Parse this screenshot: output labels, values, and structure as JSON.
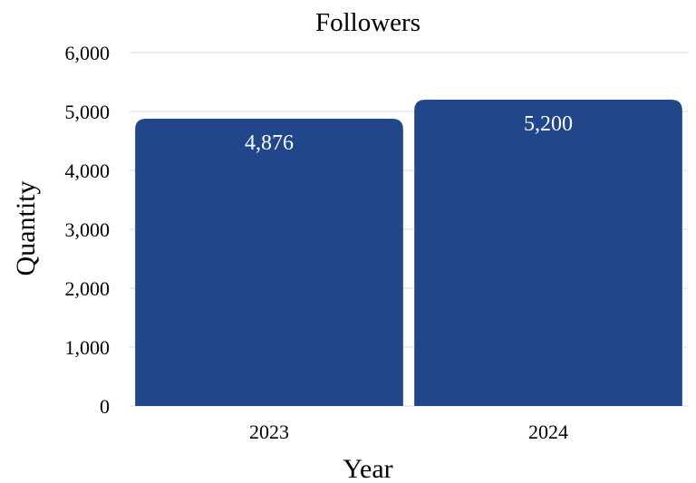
{
  "chart_data": {
    "type": "bar",
    "title": "Followers",
    "xlabel": "Year",
    "ylabel": "Quantity",
    "categories": [
      "2023",
      "2024"
    ],
    "values": [
      4876,
      5200
    ],
    "value_labels": [
      "4,876",
      "5,200"
    ],
    "ylim": [
      0,
      6000
    ],
    "yticks": [
      0,
      1000,
      2000,
      3000,
      4000,
      5000,
      6000
    ],
    "ytick_labels": [
      "0",
      "1,000",
      "2,000",
      "3,000",
      "4,000",
      "5,000",
      "6,000"
    ],
    "grid": true,
    "legend": "none",
    "bar_color": "#21468a"
  }
}
